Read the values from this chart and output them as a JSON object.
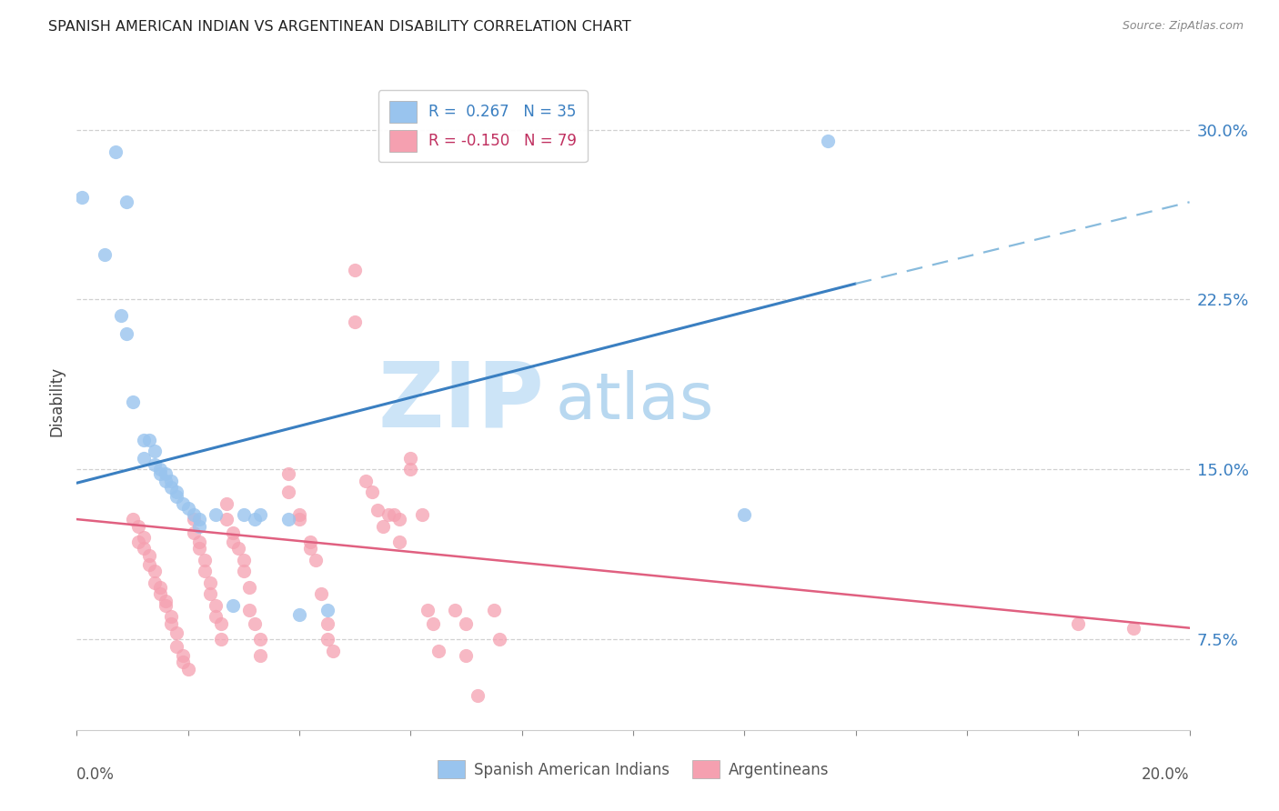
{
  "title": "SPANISH AMERICAN INDIAN VS ARGENTINEAN DISABILITY CORRELATION CHART",
  "source": "Source: ZipAtlas.com",
  "ylabel": "Disability",
  "yticks": [
    "7.5%",
    "15.0%",
    "22.5%",
    "30.0%"
  ],
  "ytick_values": [
    0.075,
    0.15,
    0.225,
    0.3
  ],
  "xlim": [
    0.0,
    0.2
  ],
  "ylim": [
    0.035,
    0.325
  ],
  "blue_color": "#99c4ee",
  "pink_color": "#f5a0b0",
  "blue_scatter": [
    [
      0.001,
      0.27
    ],
    [
      0.005,
      0.245
    ],
    [
      0.007,
      0.29
    ],
    [
      0.008,
      0.218
    ],
    [
      0.009,
      0.268
    ],
    [
      0.009,
      0.21
    ],
    [
      0.01,
      0.18
    ],
    [
      0.012,
      0.163
    ],
    [
      0.012,
      0.155
    ],
    [
      0.013,
      0.163
    ],
    [
      0.014,
      0.158
    ],
    [
      0.014,
      0.152
    ],
    [
      0.015,
      0.15
    ],
    [
      0.015,
      0.148
    ],
    [
      0.016,
      0.148
    ],
    [
      0.016,
      0.145
    ],
    [
      0.017,
      0.145
    ],
    [
      0.017,
      0.142
    ],
    [
      0.018,
      0.14
    ],
    [
      0.018,
      0.138
    ],
    [
      0.019,
      0.135
    ],
    [
      0.02,
      0.133
    ],
    [
      0.021,
      0.13
    ],
    [
      0.022,
      0.128
    ],
    [
      0.022,
      0.125
    ],
    [
      0.025,
      0.13
    ],
    [
      0.028,
      0.09
    ],
    [
      0.03,
      0.13
    ],
    [
      0.032,
      0.128
    ],
    [
      0.033,
      0.13
    ],
    [
      0.038,
      0.128
    ],
    [
      0.04,
      0.086
    ],
    [
      0.045,
      0.088
    ],
    [
      0.12,
      0.13
    ],
    [
      0.135,
      0.295
    ]
  ],
  "pink_scatter": [
    [
      0.01,
      0.128
    ],
    [
      0.011,
      0.125
    ],
    [
      0.011,
      0.118
    ],
    [
      0.012,
      0.12
    ],
    [
      0.012,
      0.115
    ],
    [
      0.013,
      0.112
    ],
    [
      0.013,
      0.108
    ],
    [
      0.014,
      0.105
    ],
    [
      0.014,
      0.1
    ],
    [
      0.015,
      0.098
    ],
    [
      0.015,
      0.095
    ],
    [
      0.016,
      0.092
    ],
    [
      0.016,
      0.09
    ],
    [
      0.017,
      0.085
    ],
    [
      0.017,
      0.082
    ],
    [
      0.018,
      0.078
    ],
    [
      0.018,
      0.072
    ],
    [
      0.019,
      0.068
    ],
    [
      0.019,
      0.065
    ],
    [
      0.02,
      0.062
    ],
    [
      0.021,
      0.128
    ],
    [
      0.021,
      0.122
    ],
    [
      0.022,
      0.118
    ],
    [
      0.022,
      0.115
    ],
    [
      0.023,
      0.11
    ],
    [
      0.023,
      0.105
    ],
    [
      0.024,
      0.1
    ],
    [
      0.024,
      0.095
    ],
    [
      0.025,
      0.09
    ],
    [
      0.025,
      0.085
    ],
    [
      0.026,
      0.082
    ],
    [
      0.026,
      0.075
    ],
    [
      0.027,
      0.135
    ],
    [
      0.027,
      0.128
    ],
    [
      0.028,
      0.122
    ],
    [
      0.028,
      0.118
    ],
    [
      0.029,
      0.115
    ],
    [
      0.03,
      0.11
    ],
    [
      0.03,
      0.105
    ],
    [
      0.031,
      0.098
    ],
    [
      0.031,
      0.088
    ],
    [
      0.032,
      0.082
    ],
    [
      0.033,
      0.075
    ],
    [
      0.033,
      0.068
    ],
    [
      0.038,
      0.148
    ],
    [
      0.038,
      0.14
    ],
    [
      0.04,
      0.13
    ],
    [
      0.04,
      0.128
    ],
    [
      0.042,
      0.118
    ],
    [
      0.042,
      0.115
    ],
    [
      0.043,
      0.11
    ],
    [
      0.044,
      0.095
    ],
    [
      0.045,
      0.082
    ],
    [
      0.045,
      0.075
    ],
    [
      0.046,
      0.07
    ],
    [
      0.05,
      0.238
    ],
    [
      0.05,
      0.215
    ],
    [
      0.052,
      0.145
    ],
    [
      0.053,
      0.14
    ],
    [
      0.054,
      0.132
    ],
    [
      0.055,
      0.125
    ],
    [
      0.056,
      0.13
    ],
    [
      0.057,
      0.13
    ],
    [
      0.058,
      0.128
    ],
    [
      0.058,
      0.118
    ],
    [
      0.06,
      0.155
    ],
    [
      0.06,
      0.15
    ],
    [
      0.062,
      0.13
    ],
    [
      0.063,
      0.088
    ],
    [
      0.064,
      0.082
    ],
    [
      0.065,
      0.07
    ],
    [
      0.068,
      0.088
    ],
    [
      0.07,
      0.082
    ],
    [
      0.07,
      0.068
    ],
    [
      0.072,
      0.05
    ],
    [
      0.075,
      0.088
    ],
    [
      0.076,
      0.075
    ],
    [
      0.18,
      0.082
    ],
    [
      0.19,
      0.08
    ]
  ],
  "blue_line_x0": 0.0,
  "blue_line_x1": 0.14,
  "blue_line_xd": 0.2,
  "blue_line_y0": 0.144,
  "blue_line_y1": 0.232,
  "blue_line_yd": 0.268,
  "pink_line_x0": 0.0,
  "pink_line_x1": 0.2,
  "pink_line_y0": 0.128,
  "pink_line_y1": 0.08,
  "background_color": "#ffffff",
  "watermark_zip": "ZIP",
  "watermark_atlas": "atlas",
  "watermark_color_zip": "#cce4f7",
  "watermark_color_atlas": "#b8d8f0"
}
